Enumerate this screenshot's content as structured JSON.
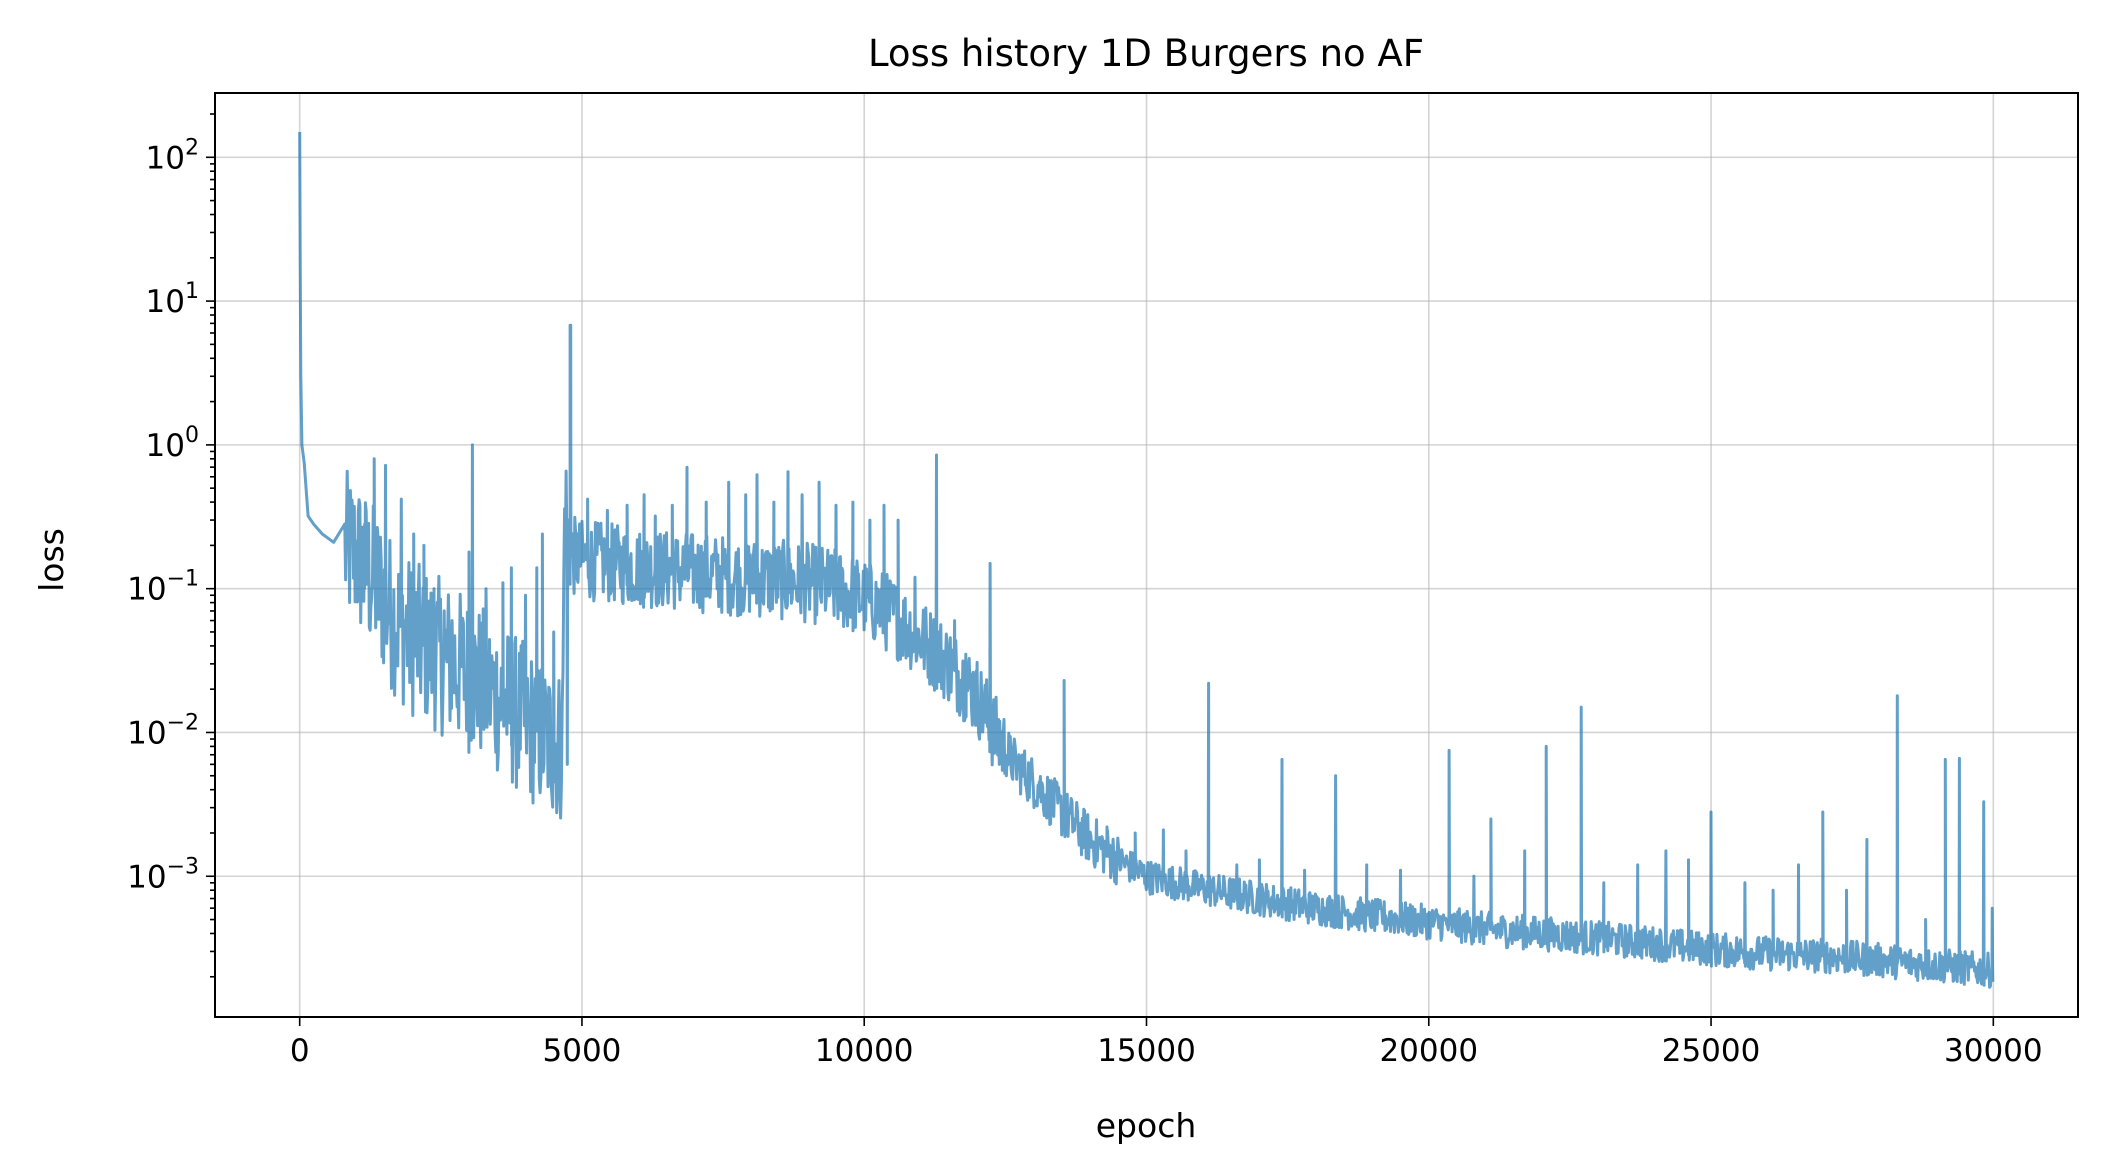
{
  "chart_data": {
    "type": "line",
    "title": "Loss history 1D Burgers no AF",
    "xlabel": "epoch",
    "ylabel": "loss",
    "xlim": [
      -1500,
      31500
    ],
    "ylim": [
      0.000105,
      280
    ],
    "yscale": "log",
    "grid": true,
    "x_ticks": [
      0,
      5000,
      10000,
      15000,
      20000,
      25000,
      30000
    ],
    "x_tick_labels": [
      "0",
      "5000",
      "10000",
      "15000",
      "20000",
      "25000",
      "30000"
    ],
    "y_ticks": [
      {
        "value": 100,
        "base": "10",
        "exp": "2"
      },
      {
        "value": 10,
        "base": "10",
        "exp": "1"
      },
      {
        "value": 1,
        "base": "10",
        "exp": "0"
      },
      {
        "value": 0.1,
        "base": "10",
        "exp": "−1"
      },
      {
        "value": 0.01,
        "base": "10",
        "exp": "−2"
      },
      {
        "value": 0.001,
        "base": "10",
        "exp": "−3"
      }
    ],
    "series": [
      {
        "color": "#1f77b4",
        "x": [
          0,
          10,
          20,
          40,
          80,
          150,
          250,
          400,
          600,
          800,
          1000,
          1200,
          1400,
          1600,
          1800,
          2000,
          2300,
          2600,
          2900,
          3200,
          3500,
          3800,
          4100,
          4400,
          4650,
          4700,
          4720,
          4750,
          4800,
          5000,
          5500,
          6000,
          6500,
          7000,
          7500,
          8000,
          8500,
          9000,
          9500,
          10000,
          10500,
          11000,
          11500,
          12000,
          12300,
          12600,
          13000,
          13500,
          14000,
          14500,
          15000,
          16000,
          17000,
          18000,
          19000,
          20000,
          21000,
          22000,
          23000,
          24000,
          25000,
          26000,
          27000,
          28000,
          28500,
          29000,
          29500,
          30000
        ],
        "y": [
          150,
          20,
          3,
          1.0,
          0.75,
          0.32,
          0.28,
          0.24,
          0.21,
          0.19,
          0.175,
          0.13,
          0.1,
          0.07,
          0.055,
          0.045,
          0.038,
          0.032,
          0.027,
          0.022,
          0.018,
          0.014,
          0.011,
          0.009,
          0.008,
          0.6,
          0.3,
          0.2,
          0.17,
          0.16,
          0.15,
          0.14,
          0.135,
          0.13,
          0.125,
          0.12,
          0.115,
          0.11,
          0.1,
          0.085,
          0.065,
          0.045,
          0.03,
          0.018,
          0.01,
          0.0065,
          0.0045,
          0.0028,
          0.0018,
          0.0013,
          0.001,
          0.00082,
          0.0007,
          0.0006,
          0.00053,
          0.00048,
          0.00043,
          0.0004,
          0.00037,
          0.00034,
          0.00031,
          0.00029,
          0.00028,
          0.00026,
          0.00025,
          0.00024,
          0.00023,
          0.00022
        ]
      }
    ],
    "spikes": [
      {
        "x": 1150,
        "y": 0.28
      },
      {
        "x": 1320,
        "y": 0.8
      },
      {
        "x": 1520,
        "y": 0.72
      },
      {
        "x": 1800,
        "y": 0.42
      },
      {
        "x": 2020,
        "y": 0.24
      },
      {
        "x": 2200,
        "y": 0.2
      },
      {
        "x": 2380,
        "y": 0.1
      },
      {
        "x": 2560,
        "y": 0.07
      },
      {
        "x": 2700,
        "y": 0.06
      },
      {
        "x": 3000,
        "y": 0.18
      },
      {
        "x": 3060,
        "y": 1.0
      },
      {
        "x": 3300,
        "y": 0.1
      },
      {
        "x": 3600,
        "y": 0.11
      },
      {
        "x": 3750,
        "y": 0.14
      },
      {
        "x": 4000,
        "y": 0.09
      },
      {
        "x": 4200,
        "y": 0.14
      },
      {
        "x": 4300,
        "y": 0.24
      },
      {
        "x": 4500,
        "y": 0.05
      },
      {
        "x": 4800,
        "y": 6.8
      },
      {
        "x": 5100,
        "y": 0.42
      },
      {
        "x": 5450,
        "y": 0.35
      },
      {
        "x": 5800,
        "y": 0.38
      },
      {
        "x": 6100,
        "y": 0.45
      },
      {
        "x": 6300,
        "y": 0.32
      },
      {
        "x": 6600,
        "y": 0.38
      },
      {
        "x": 6860,
        "y": 0.7
      },
      {
        "x": 7200,
        "y": 0.4
      },
      {
        "x": 7600,
        "y": 0.55
      },
      {
        "x": 7900,
        "y": 0.45
      },
      {
        "x": 8100,
        "y": 0.62
      },
      {
        "x": 8400,
        "y": 0.4
      },
      {
        "x": 8650,
        "y": 0.65
      },
      {
        "x": 8900,
        "y": 0.45
      },
      {
        "x": 9200,
        "y": 0.55
      },
      {
        "x": 9500,
        "y": 0.38
      },
      {
        "x": 9800,
        "y": 0.4
      },
      {
        "x": 10100,
        "y": 0.3
      },
      {
        "x": 10350,
        "y": 0.38
      },
      {
        "x": 10600,
        "y": 0.3
      },
      {
        "x": 10900,
        "y": 0.12
      },
      {
        "x": 11280,
        "y": 0.85
      },
      {
        "x": 11600,
        "y": 0.06
      },
      {
        "x": 11800,
        "y": 0.035
      },
      {
        "x": 12000,
        "y": 0.028
      },
      {
        "x": 12230,
        "y": 0.15
      },
      {
        "x": 12400,
        "y": 0.012
      },
      {
        "x": 12800,
        "y": 0.006
      },
      {
        "x": 13100,
        "y": 0.0045
      },
      {
        "x": 13540,
        "y": 0.023
      },
      {
        "x": 13900,
        "y": 0.0025
      },
      {
        "x": 14300,
        "y": 0.0022
      },
      {
        "x": 14800,
        "y": 0.002
      },
      {
        "x": 15300,
        "y": 0.0021
      },
      {
        "x": 15700,
        "y": 0.0015
      },
      {
        "x": 16100,
        "y": 0.022
      },
      {
        "x": 16600,
        "y": 0.0012
      },
      {
        "x": 17000,
        "y": 0.0013
      },
      {
        "x": 17400,
        "y": 0.0065
      },
      {
        "x": 17800,
        "y": 0.0011
      },
      {
        "x": 18350,
        "y": 0.005
      },
      {
        "x": 18900,
        "y": 0.0012
      },
      {
        "x": 19500,
        "y": 0.0011
      },
      {
        "x": 20360,
        "y": 0.0075
      },
      {
        "x": 20800,
        "y": 0.001
      },
      {
        "x": 21100,
        "y": 0.0025
      },
      {
        "x": 21700,
        "y": 0.0015
      },
      {
        "x": 22080,
        "y": 0.008
      },
      {
        "x": 22700,
        "y": 0.015
      },
      {
        "x": 23100,
        "y": 0.0009
      },
      {
        "x": 23700,
        "y": 0.0012
      },
      {
        "x": 24200,
        "y": 0.0015
      },
      {
        "x": 24600,
        "y": 0.0013
      },
      {
        "x": 25000,
        "y": 0.0028
      },
      {
        "x": 25600,
        "y": 0.0009
      },
      {
        "x": 26100,
        "y": 0.0008
      },
      {
        "x": 26550,
        "y": 0.0012
      },
      {
        "x": 26980,
        "y": 0.0028
      },
      {
        "x": 27400,
        "y": 0.0008
      },
      {
        "x": 27760,
        "y": 0.0018
      },
      {
        "x": 28300,
        "y": 0.018
      },
      {
        "x": 28800,
        "y": 0.0005
      },
      {
        "x": 29150,
        "y": 0.0065
      },
      {
        "x": 29400,
        "y": 0.0066
      },
      {
        "x": 29830,
        "y": 0.0033
      },
      {
        "x": 29980,
        "y": 0.0006
      }
    ]
  }
}
